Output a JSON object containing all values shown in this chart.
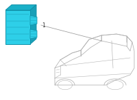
{
  "background_color": "#ffffff",
  "fig_width": 2.0,
  "fig_height": 1.47,
  "dpi": 100,
  "label_number": "1",
  "line_color": "#b0b0b0",
  "car_line_color": "#b0b0b0",
  "car_lw": 0.55,
  "unit_fill_color": "#2ecfe8",
  "unit_top_color": "#1ab0c8",
  "unit_right_color": "#18a0b8",
  "unit_edge_color": "#1090a8",
  "connector_fill": "#2ecfe8",
  "label_color": "#333333",
  "leader_color": "#999999"
}
